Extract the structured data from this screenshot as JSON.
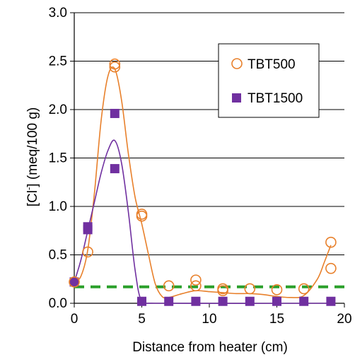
{
  "chart_data": {
    "type": "scatter",
    "xlabel": "Distance from heater (cm)",
    "ylabel": "[Cl",
    "ylabel_sup": "-",
    "ylabel_rest": "] (meq/100 g)",
    "xlim": [
      0,
      20
    ],
    "ylim": [
      0,
      3
    ],
    "x_ticks": [
      "0",
      "5",
      "10",
      "15",
      "20"
    ],
    "y_ticks": [
      "0.0",
      "0.5",
      "1.0",
      "1.5",
      "2.0",
      "2.5",
      "3.0"
    ],
    "grid": "horizontal",
    "legend_position": "top-right",
    "series": [
      {
        "name": "TBT500",
        "marker": "open-circle",
        "color": "#e8802b",
        "points": [
          [
            0,
            0.22
          ],
          [
            1,
            0.53
          ],
          [
            3,
            2.47
          ],
          [
            3,
            2.44
          ],
          [
            5,
            0.92
          ],
          [
            5,
            0.9
          ],
          [
            7,
            0.18
          ],
          [
            9,
            0.24
          ],
          [
            9,
            0.18
          ],
          [
            11,
            0.15
          ],
          [
            11,
            0.13
          ],
          [
            13,
            0.15
          ],
          [
            15,
            0.14
          ],
          [
            17,
            0.15
          ],
          [
            19,
            0.63
          ],
          [
            19,
            0.36
          ]
        ],
        "fit_curve": [
          [
            0,
            0.22
          ],
          [
            0.5,
            0.28
          ],
          [
            1,
            0.55
          ],
          [
            1.5,
            1.15
          ],
          [
            2,
            1.9
          ],
          [
            2.5,
            2.35
          ],
          [
            3,
            2.42
          ],
          [
            3.5,
            2.1
          ],
          [
            4,
            1.55
          ],
          [
            4.5,
            1.1
          ],
          [
            5,
            0.82
          ],
          [
            5.5,
            0.5
          ],
          [
            6,
            0.2
          ],
          [
            6.5,
            0.07
          ],
          [
            7,
            0.06
          ],
          [
            8,
            0.1
          ],
          [
            9,
            0.13
          ],
          [
            10,
            0.12
          ],
          [
            11,
            0.11
          ],
          [
            12,
            0.1
          ],
          [
            13,
            0.1
          ],
          [
            14,
            0.09
          ],
          [
            15,
            0.07
          ],
          [
            16,
            0.06
          ],
          [
            17,
            0.08
          ],
          [
            18,
            0.25
          ],
          [
            18.5,
            0.42
          ],
          [
            19,
            0.6
          ]
        ]
      },
      {
        "name": "TBT1500",
        "marker": "filled-square",
        "color": "#7030a0",
        "points": [
          [
            0,
            0.22
          ],
          [
            1,
            0.79
          ],
          [
            1,
            0.76
          ],
          [
            3,
            1.96
          ],
          [
            3,
            1.39
          ],
          [
            5,
            0.02
          ],
          [
            7,
            0.02
          ],
          [
            9,
            0.02
          ],
          [
            11,
            0.02
          ],
          [
            13,
            0.02
          ],
          [
            15,
            0.02
          ],
          [
            17,
            0.02
          ],
          [
            19,
            0.02
          ]
        ],
        "fit_curve": [
          [
            0,
            0.22
          ],
          [
            0.5,
            0.45
          ],
          [
            1,
            0.75
          ],
          [
            1.5,
            1.05
          ],
          [
            2,
            1.35
          ],
          [
            2.5,
            1.58
          ],
          [
            3,
            1.68
          ],
          [
            3.5,
            1.45
          ],
          [
            4,
            0.95
          ],
          [
            4.5,
            0.35
          ],
          [
            5,
            0.02
          ],
          [
            6,
            0.0
          ],
          [
            19,
            0.0
          ]
        ]
      }
    ],
    "reference_line": {
      "y": 0.17,
      "style": "dashed",
      "color": "#2ca02c"
    }
  }
}
